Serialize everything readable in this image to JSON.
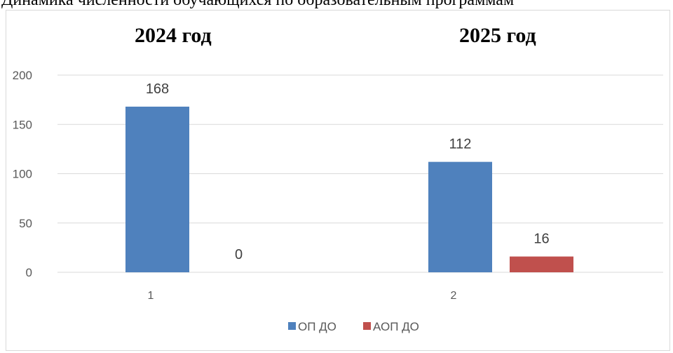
{
  "document": {
    "caption_fragment": "Динамика численности обучающихся по образовательным программам"
  },
  "chart_data": {
    "type": "bar",
    "title": "",
    "group_titles": [
      "2024 год",
      "2025 год"
    ],
    "categories": [
      "1",
      "2"
    ],
    "series": [
      {
        "name": "ОП ДО",
        "color": "#4f81bd",
        "values": [
          168,
          112
        ]
      },
      {
        "name": "АОП ДО",
        "color": "#c0504d",
        "values": [
          0,
          16
        ]
      }
    ],
    "yticks": [
      0,
      50,
      100,
      150,
      200
    ],
    "ylim": [
      0,
      200
    ],
    "xlabel": "",
    "ylabel": "",
    "grid": true,
    "legend_position": "bottom"
  }
}
